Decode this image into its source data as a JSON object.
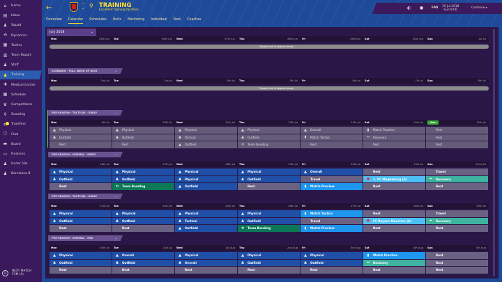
{
  "sidebar": {
    "items": [
      {
        "label": "Home",
        "icon": "home-icon",
        "glyph": "⌂"
      },
      {
        "label": "Inbox",
        "icon": "inbox-icon",
        "glyph": "▤"
      },
      {
        "label": "Squad",
        "icon": "squad-icon",
        "glyph": "♟"
      },
      {
        "label": "Dynamics",
        "icon": "dynamics-icon",
        "glyph": "⟲"
      },
      {
        "label": "Tactics",
        "icon": "tactics-icon",
        "glyph": "▦"
      },
      {
        "label": "Team Report",
        "icon": "report-icon",
        "glyph": "▥"
      },
      {
        "label": "Staff",
        "icon": "staff-icon",
        "glyph": "♟"
      },
      {
        "label": "Training",
        "icon": "training-cone-icon",
        "glyph": "▲",
        "active": true
      },
      {
        "label": "Medical Centre",
        "icon": "medical-icon",
        "glyph": "✚"
      },
      {
        "label": "Schedule",
        "icon": "calendar-icon",
        "glyph": "▦"
      },
      {
        "label": "Competitions",
        "icon": "trophy-icon",
        "glyph": "♛"
      },
      {
        "label": "Scouting",
        "icon": "magnifier-icon",
        "glyph": "⚲"
      },
      {
        "label": "Transfers",
        "icon": "transfers-icon",
        "glyph": "⇄",
        "badge": true
      },
      {
        "label": "Club",
        "icon": "shield-icon",
        "glyph": "⛉"
      },
      {
        "label": "Board",
        "icon": "board-icon",
        "glyph": "▬"
      },
      {
        "label": "Finances",
        "icon": "finances-icon",
        "glyph": "▭"
      },
      {
        "label": "Under 19s",
        "icon": "youth-team-icon",
        "glyph": "♟"
      },
      {
        "label": "Barcelona B",
        "icon": "reserve-team-icon",
        "glyph": "♟"
      }
    ],
    "next_match": {
      "title": "NEXT MATCH",
      "opponent": "FCM (A)",
      "days": "6"
    }
  },
  "header": {
    "title": "TRAINING",
    "subtitle": "Excellent training facilities",
    "tabs": [
      "Overview",
      "Calendar",
      "Schedules",
      "Units",
      "Mentoring",
      "Individual",
      "Rest",
      "Coaches"
    ],
    "active_tab": "Calendar",
    "date": "15 Jul 2018",
    "time": "Sun 9:00",
    "fmi": "FMI",
    "continue": "Continue"
  },
  "calendar": {
    "month": "July 2018",
    "colors": {
      "past": "#6e6882",
      "session": "#1f4fa6",
      "highlight": "#1e96ee",
      "match": "#4cc0f4",
      "recovery": "#3db3a0",
      "bonding": "#0c7858",
      "rest": "#6a6282",
      "today": "#3aaa3a"
    },
    "weeks": [
      {
        "scenario": "",
        "bar": "Squad end of season break",
        "days": [
          [
            "Mon",
            "25th Jun"
          ],
          [
            "Tue",
            "26th Jun"
          ],
          [
            "Wed",
            "27th Jun"
          ],
          [
            "Thu",
            "28th Jun"
          ],
          [
            "Fri",
            "29th Jun"
          ],
          [
            "Sat",
            "30th Jun"
          ],
          [
            "Sun",
            "1st Jul"
          ]
        ]
      },
      {
        "scenario": "SCENARIO - FULL WEEK OF REST",
        "bar": "Squad end of season break",
        "days": [
          [
            "Mon",
            "2nd Jul"
          ],
          [
            "Tue",
            "3rd Jul"
          ],
          [
            "Wed",
            "4th Jul"
          ],
          [
            "Thu",
            "5th Jul"
          ],
          [
            "Fri",
            "6th Jul"
          ],
          [
            "Sat",
            "7th Jul"
          ],
          [
            "Sun",
            "8th Jul"
          ]
        ]
      },
      {
        "scenario": "PRE-SEASON - TACTICAL - EARLY",
        "past": true,
        "today": 6,
        "days": [
          [
            "Mon",
            "9th Jul"
          ],
          [
            "Tue",
            "10th Jul"
          ],
          [
            "Wed",
            "11th Jul"
          ],
          [
            "Thu",
            "12th Jul"
          ],
          [
            "Fri",
            "13th Jul"
          ],
          [
            "Sat",
            "14th Jul"
          ],
          [
            "Sun",
            "15th Jul"
          ]
        ],
        "sessions": [
          [
            [
              "Physical",
              "cone"
            ],
            [
              "Physical",
              "cone"
            ],
            [
              "Physical",
              "cone"
            ],
            [
              "Physical",
              "cone"
            ],
            [
              "Overall",
              "cone"
            ],
            [
              "Match Practice",
              "clipboard"
            ],
            [
              "Rest",
              ""
            ]
          ],
          [
            [
              "Outfield",
              "cone"
            ],
            [
              "Outfield",
              "cone"
            ],
            [
              "Tactical",
              "cone"
            ],
            [
              "Outfield",
              "cone"
            ],
            [
              "Match Tactics",
              "clipboard"
            ],
            [
              "Recovery",
              "recovery"
            ],
            [
              "Rest",
              ""
            ]
          ],
          [
            [
              "Rest",
              ""
            ],
            [
              "Rest",
              ""
            ],
            [
              "Outfield",
              "cone"
            ],
            [
              "Team Bonding",
              "bonding"
            ],
            [
              "Rest",
              ""
            ],
            [
              "Rest",
              ""
            ],
            [
              "Rest",
              ""
            ]
          ]
        ]
      },
      {
        "scenario": "PRE-SEASON - NORMAL - EARLY",
        "days": [
          [
            "Mon",
            "16th Jul"
          ],
          [
            "Tue",
            "17th Jul"
          ],
          [
            "Wed",
            "18th Jul"
          ],
          [
            "Thu",
            "19th Jul"
          ],
          [
            "Fri",
            "20th Jul"
          ],
          [
            "Sat",
            "21st Jul"
          ],
          [
            "Sun",
            "22nd Jul"
          ]
        ],
        "sessions": [
          [
            [
              "Physical",
              "cone",
              "session"
            ],
            [
              "Physical",
              "cone",
              "session"
            ],
            [
              "Physical",
              "cone",
              "session"
            ],
            [
              "Physical",
              "cone",
              "session"
            ],
            [
              "Overall",
              "cone",
              "session"
            ],
            [
              "Rest",
              "",
              "rest"
            ],
            [
              "Travel",
              "",
              "rest"
            ]
          ],
          [
            [
              "Outfield",
              "cone",
              "session"
            ],
            [
              "Outfield",
              "cone",
              "session"
            ],
            [
              "Physical",
              "cone",
              "session"
            ],
            [
              "Outfield",
              "cone",
              "session"
            ],
            [
              "Travel",
              "",
              "rest"
            ],
            [
              "1. FC Magdeburg (A)",
              "crest",
              "match"
            ],
            [
              "Recovery",
              "recovery",
              "recovery"
            ]
          ],
          [
            [
              "Rest",
              "",
              "rest"
            ],
            [
              "Team Bonding",
              "bonding",
              "bonding"
            ],
            [
              "Outfield",
              "cone",
              "session"
            ],
            [
              "Rest",
              "",
              "rest"
            ],
            [
              "Match Preview",
              "clipboard",
              "highlight"
            ],
            [
              "Rest",
              "",
              "rest"
            ],
            [
              "Rest",
              "",
              "rest"
            ]
          ]
        ]
      },
      {
        "scenario": "PRE-SEASON - TACTICAL - EARLY",
        "days": [
          [
            "Mon",
            "23rd Jul"
          ],
          [
            "Tue",
            "24th Jul"
          ],
          [
            "Wed",
            "25th Jul"
          ],
          [
            "Thu",
            "26th Jul"
          ],
          [
            "Fri",
            "27th Jul"
          ],
          [
            "Sat",
            "28th Jul"
          ],
          [
            "Sun",
            "29th Jul"
          ]
        ],
        "sessions": [
          [
            [
              "Physical",
              "cone",
              "session"
            ],
            [
              "Physical",
              "cone",
              "session"
            ],
            [
              "Physical",
              "cone",
              "session"
            ],
            [
              "Physical",
              "cone",
              "session"
            ],
            [
              "Match Tactics",
              "clipboard",
              "highlight"
            ],
            [
              "Rest",
              "",
              "rest"
            ],
            [
              "Travel",
              "",
              "rest"
            ]
          ],
          [
            [
              "Outfield",
              "cone",
              "session"
            ],
            [
              "Outfield",
              "cone",
              "session"
            ],
            [
              "Tactical",
              "cone",
              "session"
            ],
            [
              "Outfield",
              "cone",
              "session"
            ],
            [
              "Travel",
              "",
              "rest"
            ],
            [
              "FC Bayern München (A)",
              "crest",
              "match"
            ],
            [
              "Recovery",
              "recovery",
              "recovery"
            ]
          ],
          [
            [
              "Rest",
              "",
              "rest"
            ],
            [
              "Rest",
              "",
              "rest"
            ],
            [
              "Outfield",
              "cone",
              "session"
            ],
            [
              "Team Bonding",
              "bonding",
              "bonding"
            ],
            [
              "Match Preview",
              "clipboard",
              "highlight"
            ],
            [
              "Rest",
              "",
              "rest"
            ],
            [
              "Rest",
              "",
              "rest"
            ]
          ]
        ]
      },
      {
        "scenario": "PRE-SEASON - NORMAL - MID",
        "days": [
          [
            "Mon",
            "30th Jul"
          ],
          [
            "Tue",
            "31st Jul"
          ],
          [
            "Wed",
            "1st Aug"
          ],
          [
            "Thu",
            "2nd Aug"
          ],
          [
            "Fri",
            "3rd Aug"
          ],
          [
            "Sat",
            "4th Aug"
          ],
          [
            "Sun",
            "5th Aug"
          ]
        ],
        "sessions": [
          [
            [
              "Physical",
              "cone",
              "session"
            ],
            [
              "Overall",
              "cone",
              "session"
            ],
            [
              "Physical",
              "cone",
              "session"
            ],
            [
              "Physical",
              "cone",
              "session"
            ],
            [
              "Physical",
              "cone",
              "session"
            ],
            [
              "Match Practice",
              "clipboard",
              "highlight"
            ],
            [
              "Rest",
              "",
              "rest"
            ]
          ],
          [
            [
              "Outfield",
              "cone",
              "session"
            ],
            [
              "Outfield",
              "cone",
              "session"
            ],
            [
              "Overall",
              "cone",
              "session"
            ],
            [
              "Outfield",
              "cone",
              "session"
            ],
            [
              "Outfield",
              "cone",
              "session"
            ],
            [
              "Recovery",
              "recovery",
              "recovery"
            ],
            [
              "Rest",
              "",
              "rest"
            ]
          ],
          [
            [
              "Rest",
              "",
              "rest"
            ],
            [
              "Rest",
              "",
              "rest"
            ],
            [
              "Rest",
              "",
              "rest"
            ],
            [
              "Rest",
              "",
              "rest"
            ],
            [
              "Rest",
              "",
              "rest"
            ],
            [
              "Rest",
              "",
              "rest"
            ],
            [
              "Rest",
              "",
              "rest"
            ]
          ]
        ]
      }
    ]
  }
}
